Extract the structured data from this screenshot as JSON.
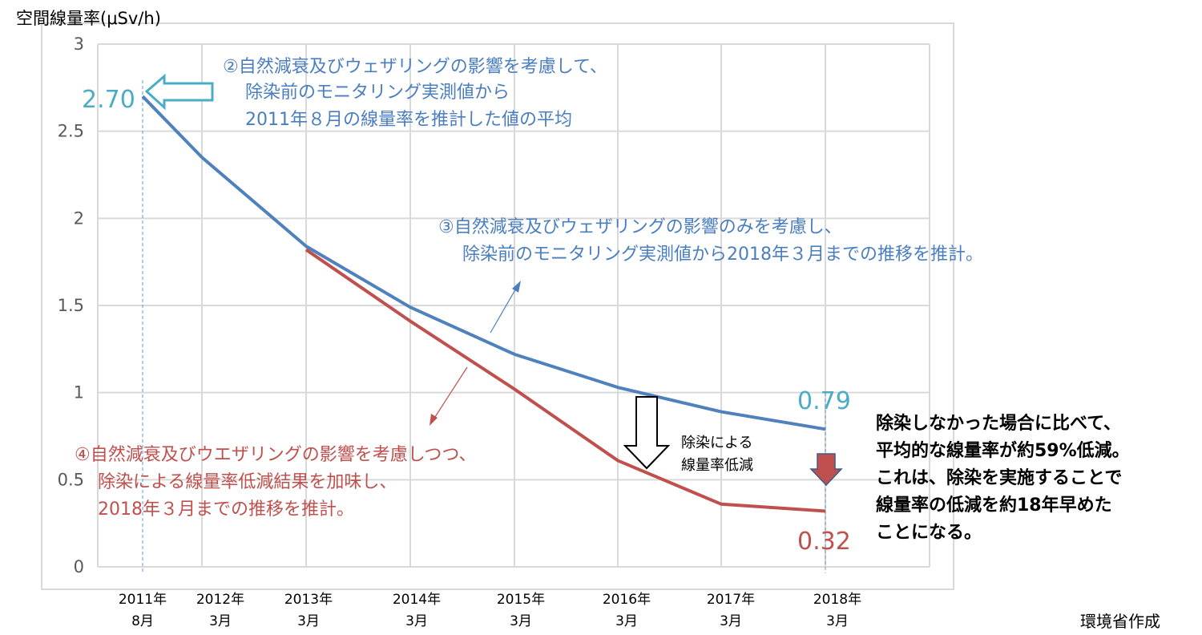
{
  "chart_data": {
    "type": "line",
    "ylabel": "空間線量率(μSv/h)",
    "ylim": [
      0,
      3
    ],
    "yticks": [
      "0",
      "0.5",
      "1",
      "1.5",
      "2",
      "2.5",
      "3"
    ],
    "grid": true,
    "categories": [
      [
        "2011年",
        "8月"
      ],
      [
        "2012年",
        "3月"
      ],
      [
        "2013年",
        "3月"
      ],
      [
        "2014年",
        "3月"
      ],
      [
        "2015年",
        "3月"
      ],
      [
        "2016年",
        "3月"
      ],
      [
        "2017年",
        "3月"
      ],
      [
        "2018年",
        "3月"
      ]
    ],
    "series": [
      {
        "key": "natural",
        "color": "#4f81bd",
        "values": [
          2.7,
          2.35,
          1.84,
          1.49,
          1.22,
          1.03,
          0.89,
          0.79
        ]
      },
      {
        "key": "decontaminated",
        "color": "#c0504d",
        "values": [
          null,
          null,
          1.82,
          1.41,
          1.02,
          0.61,
          0.36,
          0.32
        ]
      }
    ],
    "data_labels": {
      "start": {
        "text": "2.70",
        "color": "#4bacc6"
      },
      "end_natural": {
        "text": "0.79",
        "color": "#4bacc6"
      },
      "end_decontaminated": {
        "text": "0.32",
        "color": "#c0504d"
      }
    },
    "annotations": {
      "note2": [
        "②自然減衰及びウェザリングの影響を考慮して、",
        "除染前のモニタリング実測値から",
        "2011年８月の線量率を推計した値の平均"
      ],
      "note3": [
        "③自然減衰及びウェザリングの影響のみを考慮し、",
        "除染前のモニタリング実測値から2018年３月までの推移を推計。"
      ],
      "note4": [
        "④自然減衰及びウエザリングの影響を考慮しつつ、",
        "除染による線量率低減結果を加味し、",
        "2018年３月までの推移を推計。"
      ],
      "reduction": [
        "除染による",
        "線量率低減"
      ],
      "conclusion": [
        "除染しなかった場合に比べて、",
        "平均的な線量率が約59%低減。",
        "これは、除染を実施することで",
        "線量率の低減を約18年早めた",
        "ことになる。"
      ],
      "source": "環境省作成"
    }
  }
}
